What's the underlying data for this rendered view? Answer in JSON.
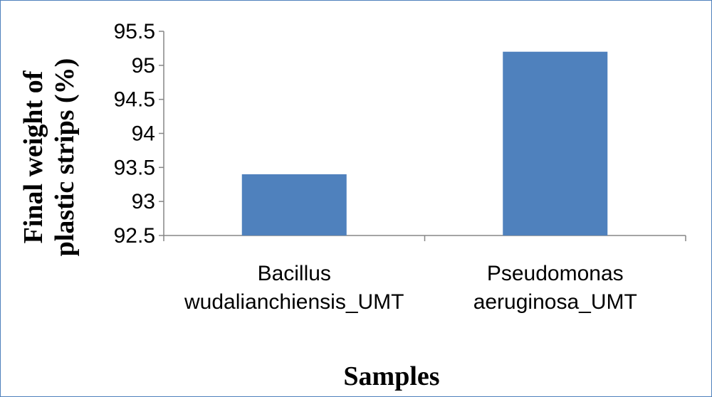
{
  "chart_data": {
    "type": "bar",
    "categories": [
      [
        "Bacillus",
        "wudalianchiensis_UMT"
      ],
      [
        "Pseudomonas",
        "aeruginosa_UMT"
      ]
    ],
    "values": [
      93.4,
      95.2
    ],
    "ylim": [
      92.5,
      95.5
    ],
    "yticks": [
      92.5,
      93,
      93.5,
      94,
      94.5,
      95,
      95.5
    ],
    "ytick_labels": [
      "92.5",
      "93",
      "93.5",
      "94",
      "94.5",
      "95",
      "95.5"
    ],
    "ylabel_lines": [
      "Final weight of",
      "plastic strips (%)"
    ],
    "xlabel": "Samples",
    "grid": false,
    "legend": "none",
    "bar_color": "#4f81bd",
    "axis_color": "#868686"
  }
}
